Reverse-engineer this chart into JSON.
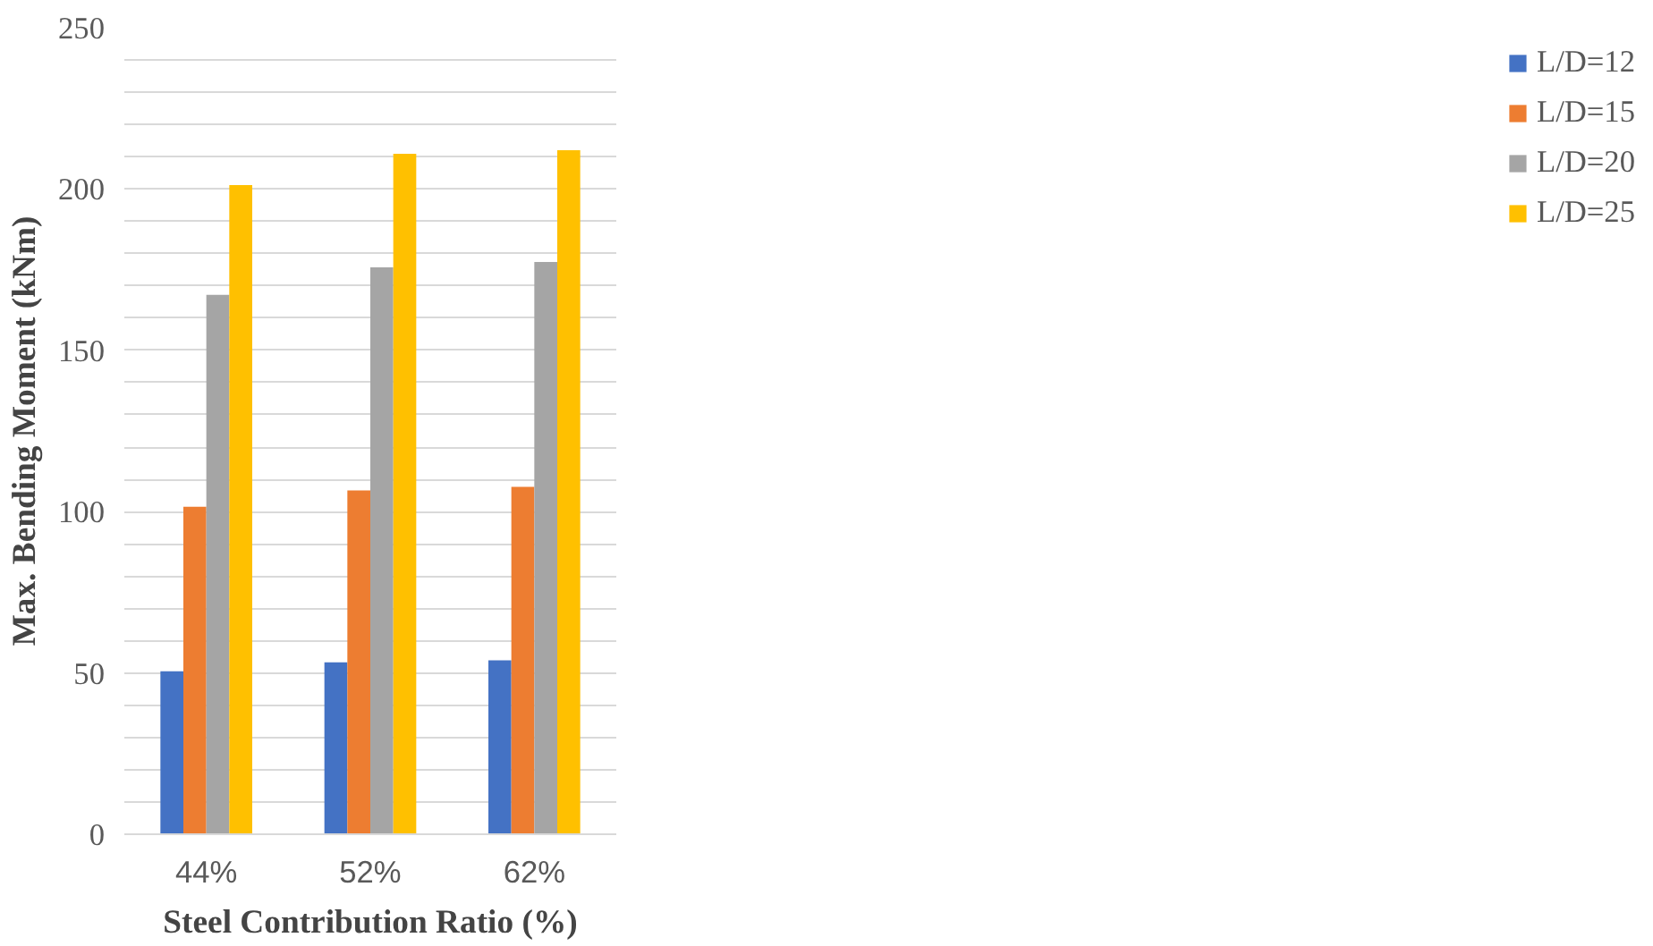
{
  "chart_data": {
    "type": "bar",
    "xlabel": "Steel Contribution Ratio (%)",
    "ylabel": "Max. Bending Moment (kNm)",
    "categories": [
      "44%",
      "52%",
      "62%"
    ],
    "series": [
      {
        "name": "L/D=12",
        "color": "#4472c4",
        "values": [
          50.5,
          53.3,
          53.9
        ]
      },
      {
        "name": "L/D=15",
        "color": "#ed7d31",
        "values": [
          101.5,
          106.6,
          107.7
        ]
      },
      {
        "name": "L/D=20",
        "color": "#a5a5a5",
        "values": [
          167.2,
          175.7,
          177.4
        ]
      },
      {
        "name": "L/D=25",
        "color": "#ffc000",
        "values": [
          201.2,
          210.9,
          212.0
        ]
      }
    ],
    "ylim": [
      0,
      250
    ],
    "yticks": [
      0,
      {
        "value": 10,
        "label": null
      },
      {
        "value": 20,
        "label": null
      },
      {
        "value": 30,
        "label": null
      },
      {
        "value": 40,
        "label": null
      },
      50,
      {
        "value": 60,
        "label": null
      },
      {
        "value": 70,
        "label": null
      },
      {
        "value": 80,
        "label": null
      },
      {
        "value": 90,
        "label": null
      },
      100,
      {
        "value": 110,
        "label": null
      },
      {
        "value": 120,
        "label": null
      },
      {
        "value": 130,
        "label": null
      },
      {
        "value": 140,
        "label": null
      },
      150,
      {
        "value": 160,
        "label": null
      },
      {
        "value": 170,
        "label": null
      },
      {
        "value": 180,
        "label": null
      },
      {
        "value": 190,
        "label": null
      },
      200,
      {
        "value": 210,
        "label": null
      },
      {
        "value": 220,
        "label": null
      },
      {
        "value": 230,
        "label": null
      },
      {
        "value": 240,
        "label": null
      },
      250
    ],
    "grid": "y",
    "legend": "right"
  }
}
